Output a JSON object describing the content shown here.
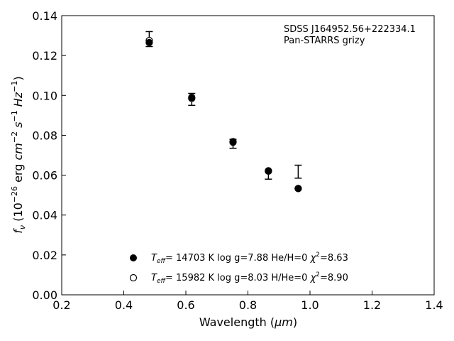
{
  "chart_data": {
    "type": "scatter",
    "xlabel_main": "Wavelength (",
    "xlabel_unit": "μm",
    "xlabel_close": ")",
    "ylabel_f": "f",
    "ylabel_nu": "ν",
    "ylabel_open": " (10",
    "ylabel_exp1": "−26",
    "ylabel_erg": " erg ",
    "ylabel_cm": "cm",
    "ylabel_exp2": "−2",
    "ylabel_s": " s",
    "ylabel_exp3": "−1",
    "ylabel_hz": " Hz",
    "ylabel_exp4": "−1",
    "ylabel_close": ")",
    "xlim": [
      0.2,
      1.4
    ],
    "ylim": [
      0.0,
      0.14
    ],
    "x_ticks": [
      "0.2",
      "0.4",
      "0.6",
      "0.8",
      "1.0",
      "1.2",
      "1.4"
    ],
    "y_ticks": [
      "0.00",
      "0.02",
      "0.04",
      "0.06",
      "0.08",
      "0.10",
      "0.12",
      "0.14"
    ],
    "x_tick_values": [
      0.2,
      0.4,
      0.6,
      0.8,
      1.0,
      1.2,
      1.4
    ],
    "y_tick_values": [
      0.0,
      0.02,
      0.04,
      0.06,
      0.08,
      0.1,
      0.12,
      0.14
    ],
    "annotation": [
      "SDSS J164952.56+222334.1",
      "Pan-STARRS grizy"
    ],
    "observed": {
      "x": [
        0.482,
        0.619,
        0.752,
        0.866,
        0.962
      ],
      "y": [
        0.128,
        0.098,
        0.076,
        0.0615,
        0.062
      ],
      "yerr_low": [
        0.0035,
        0.003,
        0.0025,
        0.0035,
        0.0035
      ],
      "yerr_high": [
        0.004,
        0.003,
        0.002,
        0.0005,
        0.003
      ]
    },
    "series": [
      {
        "marker": "filled",
        "x": [
          0.482,
          0.619,
          0.752,
          0.866,
          0.962
        ],
        "y": [
          0.1265,
          0.099,
          0.0765,
          0.062,
          0.0533
        ],
        "label": {
          "teff": "T",
          "teff_sub": "eff",
          "text": "= 14703 K  log g=7.88  He/H=0  ",
          "chi": "χ",
          "chi_sup": "2",
          "chi_val": "=8.63"
        }
      },
      {
        "marker": "open",
        "x": [
          0.482,
          0.619,
          0.752,
          0.866,
          0.962
        ],
        "y": [
          0.1275,
          0.0985,
          0.0768,
          0.0622,
          0.0533
        ],
        "label": {
          "teff": "T",
          "teff_sub": "eff",
          "text": "= 15982 K  log g=8.03  H/He=0  ",
          "chi": "χ",
          "chi_sup": "2",
          "chi_val": "=8.90"
        }
      }
    ],
    "legend_position": "lower-center",
    "grid": false
  }
}
